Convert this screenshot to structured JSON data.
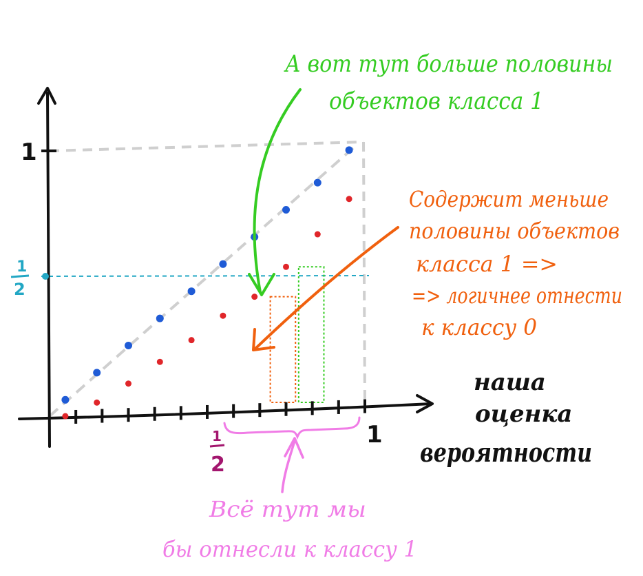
{
  "axes": {
    "y_tick_one": "1",
    "y_tick_half_num": "1",
    "y_tick_half_den": "2",
    "x_tick_one": "1",
    "x_tick_half_num": "1",
    "x_tick_half_den": "2",
    "x_label_lines": [
      "наша",
      "оценка",
      "вероятности"
    ]
  },
  "annotations": {
    "green_lines": [
      "А вот тут больше половины",
      "объектов класса 1"
    ],
    "orange_lines": [
      "Содержит меньше",
      "половины объектов",
      "класса 1 =>",
      "=> логичнее отнести",
      "к классу 0"
    ],
    "pink_lines": [
      "Всё тут мы",
      "бы отнесли к классу 1"
    ]
  },
  "colors": {
    "axis": "#111111",
    "diagonal": "#cfcfcf",
    "blue_points": "#1f5bd6",
    "red_points": "#e0262a",
    "half_line": "#22a7c4",
    "green": "#35cc22",
    "orange": "#f0600e",
    "pink": "#f07ce6",
    "half_tick": "#a3166e"
  },
  "chart_data": {
    "type": "scatter",
    "xlim": [
      0,
      1
    ],
    "ylim": [
      0,
      1
    ],
    "series": [
      {
        "color": "blue",
        "x": [
          0.05,
          0.15,
          0.25,
          0.35,
          0.45,
          0.55,
          0.65,
          0.75,
          0.85,
          0.95
        ],
        "y": [
          0.05,
          0.15,
          0.25,
          0.35,
          0.45,
          0.55,
          0.65,
          0.75,
          0.85,
          0.97
        ]
      },
      {
        "color": "red",
        "x": [
          0.05,
          0.15,
          0.25,
          0.35,
          0.45,
          0.55,
          0.65,
          0.75,
          0.85,
          0.95
        ],
        "y": [
          0.0,
          0.05,
          0.12,
          0.2,
          0.28,
          0.37,
          0.44,
          0.55,
          0.67,
          0.8
        ]
      }
    ],
    "diagonal": true,
    "highlight_boxes": [
      {
        "color": "orange",
        "x_range": [
          0.7,
          0.78
        ],
        "y_top": 0.44
      },
      {
        "color": "green",
        "x_range": [
          0.79,
          0.87
        ],
        "y_top": 0.55
      }
    ]
  }
}
